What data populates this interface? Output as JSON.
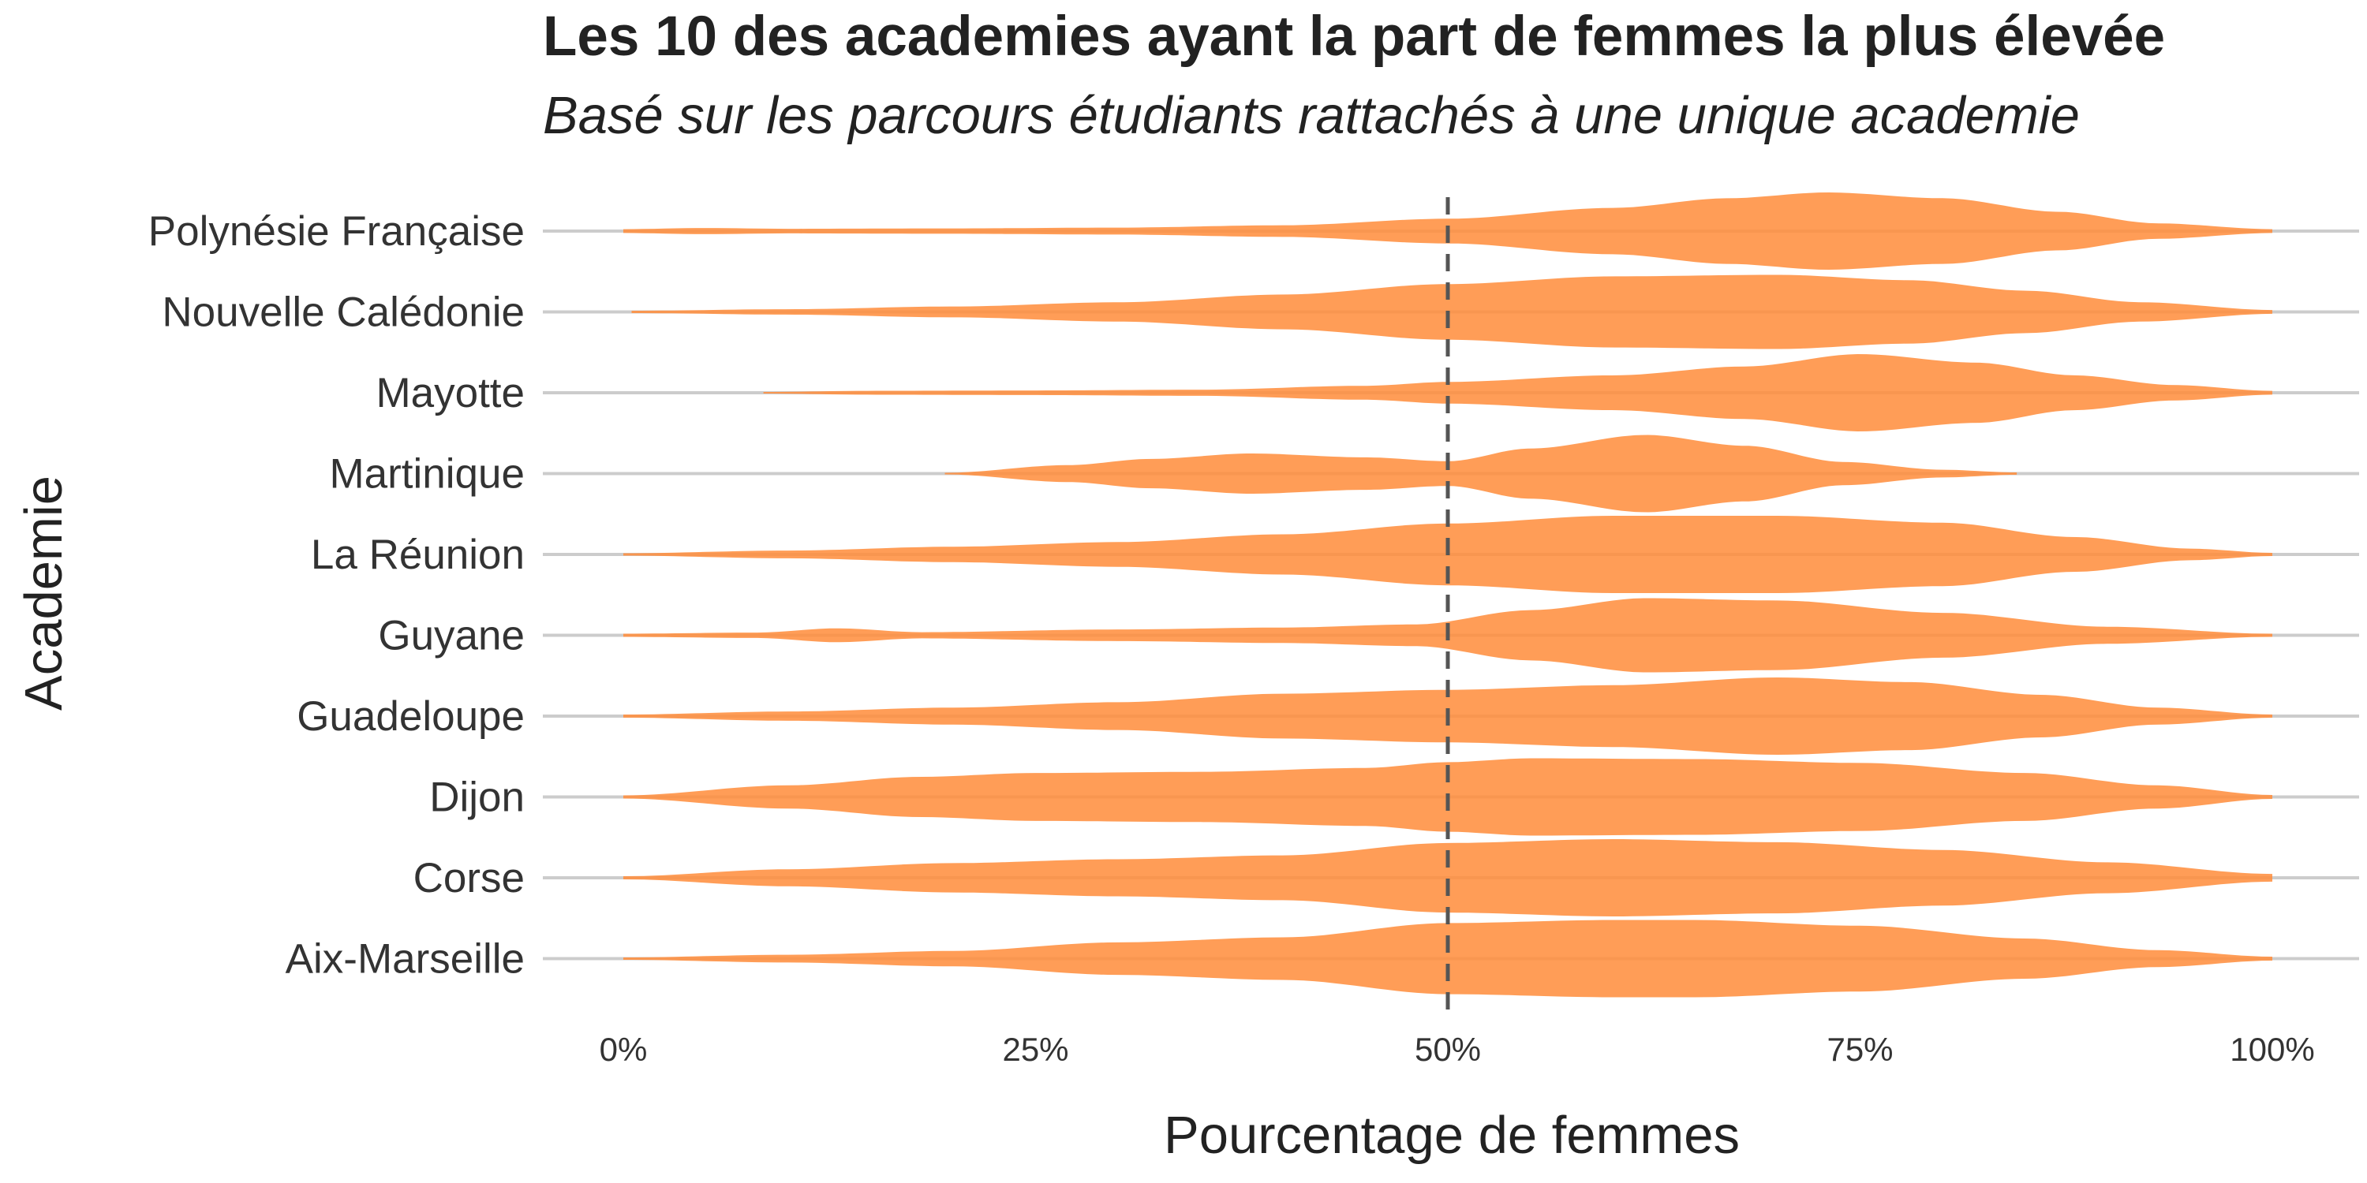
{
  "chart_data": {
    "type": "violin",
    "title": "Les 10 des academies ayant la part de femmes la plus élevée",
    "subtitle": "Basé sur les parcours étudiants rattachés à une unique academie",
    "xlabel": "Pourcentage de femmes",
    "ylabel": "Academie",
    "xlim": [
      0,
      100
    ],
    "x_ticks": [
      0,
      25,
      50,
      75,
      100
    ],
    "x_tick_labels": [
      "0%",
      "25%",
      "50%",
      "75%",
      "100%"
    ],
    "reference_line": {
      "x": 50,
      "style": "dashed"
    },
    "fill_color": "#FF8C3A",
    "grid": "horizontal",
    "categories": [
      "Polynésie Française",
      "Nouvelle Calédonie",
      "Mayotte",
      "Martinique",
      "La Réunion",
      "Guyane",
      "Guadeloupe",
      "Dijon",
      "Corse",
      "Aix-Marseille"
    ],
    "violins": [
      {
        "name": "Polynésie Française",
        "min": 0,
        "max": 100,
        "density": [
          [
            0,
            0.05
          ],
          [
            5,
            0.08
          ],
          [
            10,
            0.06
          ],
          [
            20,
            0.07
          ],
          [
            30,
            0.09
          ],
          [
            40,
            0.15
          ],
          [
            50,
            0.32
          ],
          [
            60,
            0.6
          ],
          [
            67,
            0.85
          ],
          [
            73,
            1.0
          ],
          [
            80,
            0.85
          ],
          [
            87,
            0.5
          ],
          [
            93,
            0.2
          ],
          [
            100,
            0.05
          ]
        ]
      },
      {
        "name": "Nouvelle Calédonie",
        "min": 0.5,
        "max": 100,
        "density": [
          [
            0.5,
            0.03
          ],
          [
            10,
            0.07
          ],
          [
            20,
            0.14
          ],
          [
            30,
            0.25
          ],
          [
            40,
            0.45
          ],
          [
            50,
            0.72
          ],
          [
            60,
            0.92
          ],
          [
            70,
            0.96
          ],
          [
            78,
            0.82
          ],
          [
            85,
            0.55
          ],
          [
            92,
            0.25
          ],
          [
            100,
            0.05
          ]
        ]
      },
      {
        "name": "Mayotte",
        "min": 8.5,
        "max": 100,
        "density": [
          [
            8.5,
            0.02
          ],
          [
            15,
            0.05
          ],
          [
            25,
            0.06
          ],
          [
            35,
            0.08
          ],
          [
            45,
            0.18
          ],
          [
            50,
            0.28
          ],
          [
            60,
            0.45
          ],
          [
            68,
            0.68
          ],
          [
            75,
            1.0
          ],
          [
            82,
            0.78
          ],
          [
            88,
            0.45
          ],
          [
            94,
            0.2
          ],
          [
            100,
            0.05
          ]
        ]
      },
      {
        "name": "Martinique",
        "min": 19.5,
        "max": 84.5,
        "density": [
          [
            19.5,
            0.02
          ],
          [
            27,
            0.22
          ],
          [
            32,
            0.38
          ],
          [
            38,
            0.52
          ],
          [
            45,
            0.42
          ],
          [
            50,
            0.32
          ],
          [
            55,
            0.65
          ],
          [
            62,
            1.0
          ],
          [
            68,
            0.72
          ],
          [
            74,
            0.3
          ],
          [
            80,
            0.1
          ],
          [
            84.5,
            0.03
          ]
        ]
      },
      {
        "name": "La Réunion",
        "min": 0,
        "max": 100,
        "density": [
          [
            0,
            0.03
          ],
          [
            10,
            0.1
          ],
          [
            20,
            0.2
          ],
          [
            30,
            0.32
          ],
          [
            40,
            0.52
          ],
          [
            50,
            0.8
          ],
          [
            60,
            1.0
          ],
          [
            70,
            1.0
          ],
          [
            80,
            0.82
          ],
          [
            88,
            0.45
          ],
          [
            95,
            0.15
          ],
          [
            100,
            0.04
          ]
        ]
      },
      {
        "name": "Guyane",
        "min": 0,
        "max": 100,
        "density": [
          [
            0,
            0.04
          ],
          [
            8,
            0.07
          ],
          [
            13,
            0.18
          ],
          [
            18,
            0.08
          ],
          [
            30,
            0.15
          ],
          [
            40,
            0.2
          ],
          [
            48,
            0.28
          ],
          [
            55,
            0.65
          ],
          [
            62,
            0.96
          ],
          [
            70,
            0.9
          ],
          [
            80,
            0.58
          ],
          [
            90,
            0.22
          ],
          [
            100,
            0.04
          ]
        ]
      },
      {
        "name": "Guadeloupe",
        "min": 0,
        "max": 100,
        "density": [
          [
            0,
            0.04
          ],
          [
            10,
            0.12
          ],
          [
            20,
            0.22
          ],
          [
            30,
            0.36
          ],
          [
            40,
            0.58
          ],
          [
            50,
            0.68
          ],
          [
            60,
            0.8
          ],
          [
            70,
            1.0
          ],
          [
            78,
            0.88
          ],
          [
            86,
            0.55
          ],
          [
            93,
            0.22
          ],
          [
            100,
            0.04
          ]
        ]
      },
      {
        "name": "Dijon",
        "min": 0,
        "max": 100,
        "density": [
          [
            0,
            0.04
          ],
          [
            10,
            0.3
          ],
          [
            18,
            0.52
          ],
          [
            25,
            0.62
          ],
          [
            35,
            0.65
          ],
          [
            45,
            0.75
          ],
          [
            50,
            0.9
          ],
          [
            55,
            1.0
          ],
          [
            65,
            0.98
          ],
          [
            75,
            0.88
          ],
          [
            85,
            0.62
          ],
          [
            93,
            0.3
          ],
          [
            100,
            0.05
          ]
        ]
      },
      {
        "name": "Corse",
        "min": 0,
        "max": 100,
        "density": [
          [
            0,
            0.04
          ],
          [
            10,
            0.22
          ],
          [
            20,
            0.38
          ],
          [
            30,
            0.48
          ],
          [
            40,
            0.58
          ],
          [
            50,
            0.9
          ],
          [
            60,
            1.0
          ],
          [
            70,
            0.92
          ],
          [
            80,
            0.72
          ],
          [
            90,
            0.4
          ],
          [
            100,
            0.1
          ]
        ]
      },
      {
        "name": "Aix-Marseille",
        "min": 0,
        "max": 100,
        "density": [
          [
            0,
            0.03
          ],
          [
            10,
            0.1
          ],
          [
            20,
            0.2
          ],
          [
            30,
            0.42
          ],
          [
            40,
            0.55
          ],
          [
            50,
            0.92
          ],
          [
            60,
            1.0
          ],
          [
            65,
            1.0
          ],
          [
            75,
            0.85
          ],
          [
            85,
            0.52
          ],
          [
            93,
            0.22
          ],
          [
            100,
            0.05
          ]
        ]
      }
    ]
  }
}
